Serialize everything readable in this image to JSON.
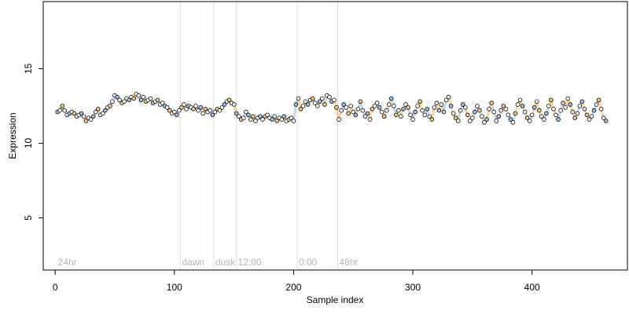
{
  "chart_data": {
    "type": "scatter",
    "xlabel": "Sample index",
    "ylabel": "Expression",
    "xlim": [
      -10,
      480
    ],
    "ylim": [
      1.5,
      19.5
    ],
    "xticks": [
      0,
      100,
      200,
      300,
      400
    ],
    "yticks": [
      5,
      10,
      15
    ],
    "sections": [
      {
        "label": "24hr",
        "x": 1
      },
      {
        "label": "dawn",
        "x": 105
      },
      {
        "label": "dusk",
        "x": 133
      },
      {
        "label": "12:00",
        "x": 152
      },
      {
        "label": "0:00",
        "x": 203
      },
      {
        "label": "48hr",
        "x": 237
      }
    ],
    "highlight_colors": {
      "warm": "#f5a623",
      "cool": "#7aa6d8"
    },
    "points": [
      [
        2,
        12.1
      ],
      [
        4,
        12.2
      ],
      [
        6,
        12.5
      ],
      [
        8,
        12.2
      ],
      [
        10,
        11.9
      ],
      [
        12,
        12.0
      ],
      [
        14,
        12.1
      ],
      [
        16,
        12.0
      ],
      [
        18,
        11.8
      ],
      [
        20,
        11.9
      ],
      [
        22,
        12.0
      ],
      [
        24,
        11.8
      ],
      [
        26,
        11.5
      ],
      [
        28,
        11.7
      ],
      [
        30,
        11.6
      ],
      [
        32,
        11.8
      ],
      [
        34,
        12.1
      ],
      [
        36,
        12.3
      ],
      [
        38,
        11.9
      ],
      [
        40,
        12.0
      ],
      [
        42,
        12.2
      ],
      [
        44,
        12.4
      ],
      [
        46,
        12.5
      ],
      [
        48,
        12.8
      ],
      [
        50,
        13.2
      ],
      [
        52,
        13.1
      ],
      [
        54,
        12.9
      ],
      [
        56,
        12.7
      ],
      [
        58,
        12.8
      ],
      [
        60,
        13.0
      ],
      [
        62,
        12.9
      ],
      [
        64,
        13.1
      ],
      [
        66,
        13.0
      ],
      [
        68,
        13.3
      ],
      [
        70,
        13.2
      ],
      [
        72,
        12.9
      ],
      [
        74,
        13.1
      ],
      [
        76,
        12.8
      ],
      [
        78,
        12.9
      ],
      [
        80,
        13.0
      ],
      [
        82,
        12.7
      ],
      [
        84,
        12.8
      ],
      [
        86,
        12.9
      ],
      [
        88,
        12.6
      ],
      [
        90,
        12.7
      ],
      [
        92,
        12.5
      ],
      [
        94,
        12.4
      ],
      [
        96,
        12.2
      ],
      [
        98,
        12.0
      ],
      [
        100,
        12.1
      ],
      [
        102,
        11.9
      ],
      [
        104,
        12.2
      ],
      [
        106,
        12.4
      ],
      [
        108,
        12.6
      ],
      [
        110,
        12.3
      ],
      [
        112,
        12.5
      ],
      [
        114,
        12.4
      ],
      [
        116,
        12.3
      ],
      [
        118,
        12.5
      ],
      [
        120,
        12.2
      ],
      [
        122,
        12.4
      ],
      [
        124,
        12.0
      ],
      [
        126,
        12.3
      ],
      [
        128,
        12.1
      ],
      [
        130,
        12.2
      ],
      [
        132,
        11.9
      ],
      [
        134,
        12.1
      ],
      [
        136,
        12.3
      ],
      [
        138,
        12.2
      ],
      [
        140,
        12.4
      ],
      [
        142,
        12.6
      ],
      [
        144,
        12.8
      ],
      [
        146,
        12.9
      ],
      [
        148,
        12.7
      ],
      [
        150,
        12.6
      ],
      [
        152,
        12.0
      ],
      [
        154,
        11.8
      ],
      [
        156,
        11.6
      ],
      [
        158,
        11.7
      ],
      [
        160,
        12.1
      ],
      [
        162,
        11.9
      ],
      [
        164,
        11.6
      ],
      [
        166,
        11.8
      ],
      [
        168,
        11.5
      ],
      [
        170,
        11.7
      ],
      [
        172,
        11.8
      ],
      [
        174,
        11.6
      ],
      [
        176,
        11.8
      ],
      [
        178,
        11.9
      ],
      [
        180,
        11.7
      ],
      [
        182,
        11.6
      ],
      [
        184,
        11.8
      ],
      [
        186,
        11.5
      ],
      [
        188,
        11.7
      ],
      [
        190,
        11.6
      ],
      [
        192,
        11.8
      ],
      [
        194,
        11.5
      ],
      [
        196,
        11.6
      ],
      [
        198,
        11.7
      ],
      [
        200,
        11.5
      ],
      [
        202,
        12.6
      ],
      [
        204,
        13.0
      ],
      [
        206,
        12.3
      ],
      [
        208,
        12.5
      ],
      [
        210,
        12.8
      ],
      [
        212,
        12.6
      ],
      [
        214,
        12.9
      ],
      [
        216,
        13.0
      ],
      [
        218,
        12.7
      ],
      [
        220,
        12.5
      ],
      [
        222,
        12.8
      ],
      [
        224,
        13.0
      ],
      [
        226,
        12.6
      ],
      [
        228,
        13.2
      ],
      [
        230,
        13.1
      ],
      [
        232,
        12.8
      ],
      [
        234,
        12.9
      ],
      [
        236,
        12.4
      ],
      [
        238,
        11.6
      ],
      [
        240,
        12.2
      ],
      [
        242,
        12.6
      ],
      [
        244,
        12.4
      ],
      [
        246,
        12.0
      ],
      [
        248,
        12.5
      ],
      [
        250,
        12.1
      ],
      [
        252,
        11.9
      ],
      [
        254,
        12.3
      ],
      [
        256,
        12.8
      ],
      [
        258,
        12.2
      ],
      [
        260,
        11.8
      ],
      [
        262,
        12.0
      ],
      [
        264,
        11.6
      ],
      [
        266,
        12.3
      ],
      [
        268,
        12.5
      ],
      [
        270,
        12.7
      ],
      [
        272,
        12.4
      ],
      [
        274,
        12.1
      ],
      [
        276,
        11.8
      ],
      [
        278,
        12.2
      ],
      [
        280,
        12.6
      ],
      [
        282,
        13.0
      ],
      [
        284,
        12.5
      ],
      [
        286,
        11.9
      ],
      [
        288,
        12.2
      ],
      [
        290,
        11.8
      ],
      [
        292,
        12.3
      ],
      [
        294,
        12.6
      ],
      [
        296,
        12.4
      ],
      [
        298,
        11.9
      ],
      [
        300,
        11.6
      ],
      [
        302,
        12.1
      ],
      [
        304,
        12.5
      ],
      [
        306,
        12.8
      ],
      [
        308,
        12.2
      ],
      [
        310,
        11.9
      ],
      [
        312,
        12.3
      ],
      [
        314,
        11.8
      ],
      [
        316,
        11.6
      ],
      [
        318,
        12.4
      ],
      [
        320,
        12.7
      ],
      [
        322,
        12.2
      ],
      [
        324,
        12.6
      ],
      [
        326,
        12.1
      ],
      [
        328,
        12.9
      ],
      [
        330,
        13.1
      ],
      [
        332,
        12.5
      ],
      [
        334,
        12.0
      ],
      [
        336,
        11.7
      ],
      [
        338,
        11.5
      ],
      [
        340,
        12.2
      ],
      [
        342,
        12.6
      ],
      [
        344,
        12.4
      ],
      [
        346,
        11.9
      ],
      [
        348,
        11.5
      ],
      [
        350,
        11.7
      ],
      [
        352,
        12.1
      ],
      [
        354,
        12.5
      ],
      [
        356,
        12.2
      ],
      [
        358,
        11.8
      ],
      [
        360,
        11.4
      ],
      [
        362,
        11.6
      ],
      [
        364,
        12.3
      ],
      [
        366,
        12.7
      ],
      [
        368,
        12.1
      ],
      [
        370,
        11.5
      ],
      [
        372,
        11.8
      ],
      [
        374,
        12.2
      ],
      [
        376,
        12.5
      ],
      [
        378,
        12.3
      ],
      [
        380,
        11.9
      ],
      [
        382,
        11.6
      ],
      [
        384,
        11.4
      ],
      [
        386,
        12.0
      ],
      [
        388,
        12.6
      ],
      [
        390,
        12.9
      ],
      [
        392,
        12.5
      ],
      [
        394,
        12.1
      ],
      [
        396,
        11.7
      ],
      [
        398,
        11.5
      ],
      [
        400,
        11.9
      ],
      [
        402,
        12.4
      ],
      [
        404,
        12.8
      ],
      [
        406,
        12.2
      ],
      [
        408,
        11.8
      ],
      [
        410,
        11.6
      ],
      [
        412,
        12.0
      ],
      [
        414,
        12.5
      ],
      [
        416,
        12.9
      ],
      [
        418,
        12.3
      ],
      [
        420,
        11.9
      ],
      [
        422,
        11.6
      ],
      [
        424,
        12.2
      ],
      [
        426,
        12.7
      ],
      [
        428,
        12.4
      ],
      [
        430,
        13.0
      ],
      [
        432,
        12.6
      ],
      [
        434,
        12.1
      ],
      [
        436,
        11.7
      ],
      [
        438,
        12.0
      ],
      [
        440,
        12.5
      ],
      [
        442,
        12.8
      ],
      [
        444,
        12.3
      ],
      [
        446,
        11.9
      ],
      [
        448,
        11.6
      ],
      [
        450,
        11.8
      ],
      [
        452,
        12.2
      ],
      [
        454,
        12.6
      ],
      [
        456,
        12.9
      ],
      [
        458,
        12.3
      ],
      [
        460,
        11.7
      ],
      [
        462,
        11.5
      ]
    ]
  }
}
